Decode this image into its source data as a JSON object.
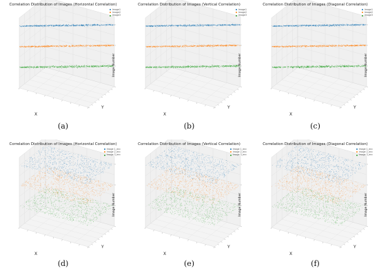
{
  "captions": [
    "(a)",
    "(b)",
    "(c)",
    "(d)",
    "(e)",
    "(f)"
  ],
  "chart_data": [
    {
      "type": "scatter",
      "dimensions": 3,
      "title": "Correlation Distribution of Images (Horizontal Correlation)",
      "xlabel": "X",
      "ylabel": "Y",
      "zlabel": "Image Number",
      "legend_position": "top-right",
      "pattern": "diagonal",
      "series": [
        {
          "name": "Image1",
          "z": 3,
          "color": "#1f77b4"
        },
        {
          "name": "Image2",
          "z": 2,
          "color": "#ff7f0e"
        },
        {
          "name": "Image3",
          "z": 1,
          "color": "#2ca02c"
        }
      ]
    },
    {
      "type": "scatter",
      "dimensions": 3,
      "title": "Correlation Distribution of Images (Vertical Correlation)",
      "xlabel": "X",
      "ylabel": "Y",
      "zlabel": "Image Number",
      "legend_position": "top-right",
      "pattern": "diagonal",
      "series": [
        {
          "name": "Image1",
          "z": 3,
          "color": "#1f77b4"
        },
        {
          "name": "Image2",
          "z": 2,
          "color": "#ff7f0e"
        },
        {
          "name": "Image3",
          "z": 1,
          "color": "#2ca02c"
        }
      ]
    },
    {
      "type": "scatter",
      "dimensions": 3,
      "title": "Correlation Distribution of Images (Diagonal Correlation)",
      "xlabel": "X",
      "ylabel": "Y",
      "zlabel": "Image Number",
      "legend_position": "top-right",
      "pattern": "diagonal",
      "series": [
        {
          "name": "Image1",
          "z": 3,
          "color": "#1f77b4"
        },
        {
          "name": "Image2",
          "z": 2,
          "color": "#ff7f0e"
        },
        {
          "name": "Image3",
          "z": 1,
          "color": "#2ca02c"
        }
      ]
    },
    {
      "type": "scatter",
      "dimensions": 3,
      "title": "Correlation Distribution of Images (Horizontal Correlation)",
      "xlabel": "X",
      "ylabel": "Y",
      "zlabel": "Image Number",
      "legend_position": "top-right",
      "pattern": "uniform",
      "series": [
        {
          "name": "Image 1_enc",
          "z": 3,
          "color": "#1f77b4"
        },
        {
          "name": "Image 2_enc",
          "z": 2,
          "color": "#ff7f0e"
        },
        {
          "name": "Image 3_enc",
          "z": 1,
          "color": "#2ca02c"
        }
      ]
    },
    {
      "type": "scatter",
      "dimensions": 3,
      "title": "Correlation Distribution of Images (Vertical Correlation)",
      "xlabel": "X",
      "ylabel": "Y",
      "zlabel": "Image Number",
      "legend_position": "top-right",
      "pattern": "uniform",
      "series": [
        {
          "name": "Image 1_enc",
          "z": 3,
          "color": "#1f77b4"
        },
        {
          "name": "Image 2_enc",
          "z": 2,
          "color": "#ff7f0e"
        },
        {
          "name": "Image 3_enc",
          "z": 1,
          "color": "#2ca02c"
        }
      ]
    },
    {
      "type": "scatter",
      "dimensions": 3,
      "title": "Correlation Distribution of Images (Diagonal Correlation)",
      "xlabel": "X",
      "ylabel": "Y",
      "zlabel": "Image Number",
      "legend_position": "top-right",
      "pattern": "uniform",
      "series": [
        {
          "name": "Image 1_enc",
          "z": 3,
          "color": "#1f77b4"
        },
        {
          "name": "Image 2_enc",
          "z": 2,
          "color": "#ff7f0e"
        },
        {
          "name": "Image 3_enc",
          "z": 1,
          "color": "#2ca02c"
        }
      ]
    }
  ]
}
